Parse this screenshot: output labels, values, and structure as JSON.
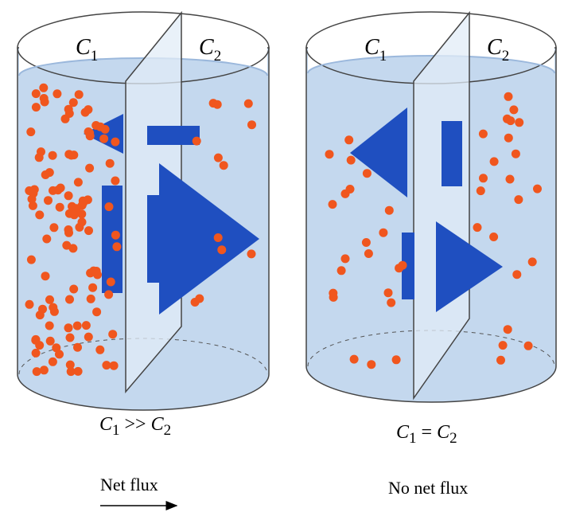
{
  "left": {
    "compartments": [
      {
        "symbol": "C",
        "subscript": "1"
      },
      {
        "symbol": "C",
        "subscript": "2"
      }
    ],
    "caption": [
      "C",
      "1",
      ">>",
      "C",
      "2"
    ],
    "flux_label": "Net flux"
  },
  "right": {
    "compartments": [
      {
        "symbol": "C",
        "subscript": "1"
      },
      {
        "symbol": "C",
        "subscript": "2"
      }
    ],
    "caption": [
      "C",
      "1",
      "=",
      "C",
      "2"
    ],
    "flux_label": "No net flux"
  }
}
